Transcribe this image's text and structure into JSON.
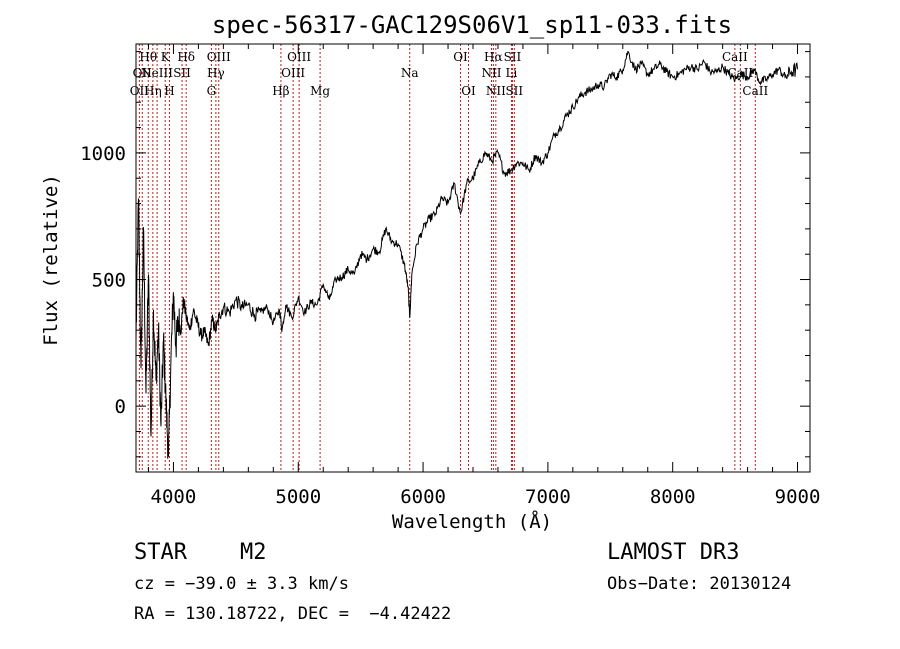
{
  "chart_data": {
    "type": "line",
    "title": "spec-56317-GAC129S06V1_sp11-033.fits",
    "xlabel": "Wavelength (Å)",
    "ylabel": "Flux (relative)",
    "xlim": [
      3700,
      9100
    ],
    "ylim": [
      -260,
      1430
    ],
    "xticks": [
      4000,
      5000,
      6000,
      7000,
      8000,
      9000
    ],
    "xtick_labels": [
      "4000",
      "5000",
      "6000",
      "7000",
      "8000",
      "9000"
    ],
    "yticks": [
      0,
      500,
      1000
    ],
    "ytick_labels": [
      "0",
      "500",
      "1000"
    ],
    "grid": false,
    "series": [
      {
        "name": "spectrum",
        "x": [
          3700,
          3720,
          3740,
          3760,
          3780,
          3800,
          3820,
          3840,
          3860,
          3880,
          3900,
          3920,
          3940,
          3960,
          3980,
          4000,
          4020,
          4040,
          4060,
          4080,
          4100,
          4130,
          4160,
          4190,
          4220,
          4250,
          4280,
          4310,
          4340,
          4370,
          4400,
          4450,
          4500,
          4550,
          4600,
          4650,
          4700,
          4750,
          4800,
          4850,
          4870,
          4900,
          4950,
          5000,
          5050,
          5100,
          5150,
          5200,
          5250,
          5300,
          5350,
          5400,
          5450,
          5500,
          5550,
          5600,
          5650,
          5700,
          5750,
          5800,
          5850,
          5880,
          5893,
          5910,
          5950,
          6000,
          6050,
          6100,
          6150,
          6200,
          6250,
          6300,
          6350,
          6400,
          6450,
          6500,
          6550,
          6600,
          6650,
          6700,
          6750,
          6800,
          6850,
          6900,
          6950,
          7000,
          7050,
          7100,
          7150,
          7200,
          7250,
          7300,
          7350,
          7400,
          7450,
          7500,
          7550,
          7600,
          7640,
          7700,
          7750,
          7800,
          7850,
          7900,
          7950,
          8000,
          8050,
          8100,
          8150,
          8200,
          8250,
          8300,
          8350,
          8400,
          8450,
          8500,
          8550,
          8600,
          8650,
          8700,
          8750,
          8800,
          8850,
          8900,
          8950,
          9000
        ],
        "y": [
          250,
          820,
          150,
          700,
          50,
          520,
          -120,
          380,
          100,
          300,
          -80,
          260,
          20,
          -200,
          180,
          450,
          240,
          340,
          300,
          420,
          360,
          300,
          380,
          330,
          280,
          290,
          240,
          340,
          300,
          360,
          390,
          370,
          420,
          390,
          400,
          360,
          370,
          390,
          330,
          380,
          300,
          400,
          350,
          430,
          370,
          410,
          400,
          480,
          420,
          500,
          510,
          540,
          520,
          600,
          580,
          620,
          610,
          700,
          650,
          640,
          560,
          470,
          350,
          520,
          640,
          700,
          740,
          760,
          820,
          800,
          880,
          760,
          880,
          900,
          960,
          1000,
          970,
          1000,
          920,
          930,
          960,
          960,
          930,
          990,
          960,
          1000,
          1070,
          1100,
          1150,
          1180,
          1220,
          1240,
          1250,
          1270,
          1260,
          1310,
          1300,
          1330,
          1400,
          1330,
          1350,
          1310,
          1330,
          1350,
          1320,
          1300,
          1310,
          1330,
          1340,
          1330,
          1360,
          1320,
          1320,
          1340,
          1310,
          1290,
          1310,
          1300,
          1330,
          1280,
          1290,
          1310,
          1330,
          1300,
          1320,
          1330
        ]
      }
    ],
    "lines": [
      {
        "wl": 3727,
        "labels": [
          "",
          "",
          "OII"
        ]
      },
      {
        "wl": 3750,
        "labels": [
          "",
          "OII",
          ""
        ]
      },
      {
        "wl": 3798,
        "labels": [
          "Hθ",
          "",
          ""
        ]
      },
      {
        "wl": 3835,
        "labels": [
          "",
          "",
          "Hη"
        ]
      },
      {
        "wl": 3869,
        "labels": [
          "",
          "NeIII",
          ""
        ]
      },
      {
        "wl": 3934,
        "labels": [
          "K",
          "",
          ""
        ]
      },
      {
        "wl": 3968,
        "labels": [
          "",
          "",
          "H"
        ]
      },
      {
        "wl": 4069,
        "labels": [
          "",
          "SII",
          ""
        ]
      },
      {
        "wl": 4102,
        "labels": [
          "Hδ",
          "",
          ""
        ]
      },
      {
        "wl": 4304,
        "labels": [
          "",
          "",
          "G"
        ]
      },
      {
        "wl": 4340,
        "labels": [
          "",
          "Hγ",
          ""
        ]
      },
      {
        "wl": 4363,
        "labels": [
          "OIII",
          "",
          ""
        ]
      },
      {
        "wl": 4861,
        "labels": [
          "",
          "",
          "Hβ"
        ]
      },
      {
        "wl": 4959,
        "labels": [
          "",
          "OIII",
          ""
        ]
      },
      {
        "wl": 5007,
        "labels": [
          "OIII",
          "",
          ""
        ]
      },
      {
        "wl": 5175,
        "labels": [
          "",
          "",
          "Mg"
        ]
      },
      {
        "wl": 5893,
        "labels": [
          "",
          "Na",
          ""
        ]
      },
      {
        "wl": 6300,
        "labels": [
          "OI",
          "",
          ""
        ]
      },
      {
        "wl": 6364,
        "labels": [
          "",
          "",
          "OI"
        ]
      },
      {
        "wl": 6548,
        "labels": [
          "",
          "NII",
          ""
        ]
      },
      {
        "wl": 6563,
        "labels": [
          "Hα",
          "",
          ""
        ]
      },
      {
        "wl": 6583,
        "labels": [
          "",
          "",
          "NII"
        ]
      },
      {
        "wl": 6708,
        "labels": [
          "",
          "Li",
          ""
        ]
      },
      {
        "wl": 6716,
        "labels": [
          "SII",
          "",
          ""
        ]
      },
      {
        "wl": 6731,
        "labels": [
          "",
          "",
          "SII"
        ]
      },
      {
        "wl": 8498,
        "labels": [
          "CaII",
          "",
          ""
        ]
      },
      {
        "wl": 8542,
        "labels": [
          "",
          "CaII",
          ""
        ]
      },
      {
        "wl": 8662,
        "labels": [
          "",
          "",
          "CaII"
        ]
      }
    ]
  },
  "info": {
    "class_line": "STAR    M2",
    "survey": "LAMOST DR3",
    "cz": "cz = −39.0 ± 3.3 km/s",
    "obs_date": "Obs−Date: 20130124",
    "coords": "RA = 130.18722, DEC =  −4.42422"
  },
  "colors": {
    "line_markers": "#b22222",
    "spectrum": "#000000",
    "axes": "#000000"
  }
}
